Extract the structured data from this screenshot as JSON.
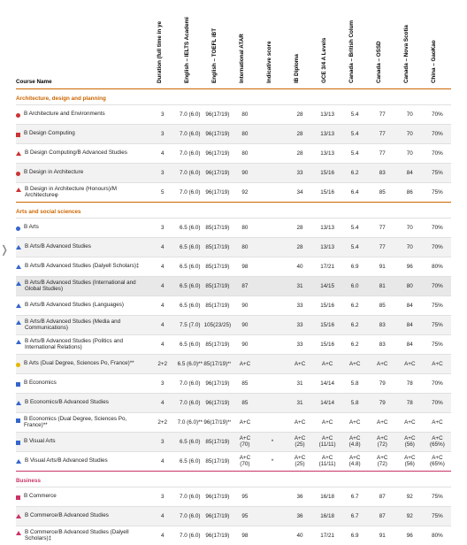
{
  "headers": {
    "course_name": "Course Name",
    "cols": [
      "Duration (full time in ye",
      "English – IELTS Academi",
      "English – TOEFL iBT",
      "International ATAR",
      "Indicative score",
      "IB Diploma",
      "GCE 3/4 A Levels",
      "Canada – British Colum",
      "Canada – OSSD",
      "Canada – Nova Scotia",
      "China – GaoKao"
    ]
  },
  "sections": [
    {
      "title": "Architecture, design and planning",
      "class": "",
      "rows": [
        {
          "shape": "circle",
          "color": "#cc3333",
          "name": "B Architecture and Environments",
          "vals": [
            "3",
            "7.0 (6.0)",
            "96(17/19)",
            "80",
            "",
            "28",
            "13/13",
            "5.4",
            "77",
            "70",
            "70%"
          ]
        },
        {
          "shape": "square",
          "color": "#cc3333",
          "name": "B Design Computing",
          "shade": true,
          "vals": [
            "3",
            "7.0 (6.0)",
            "96(17/19)",
            "80",
            "",
            "28",
            "13/13",
            "5.4",
            "77",
            "70",
            "70%"
          ]
        },
        {
          "shape": "tri",
          "color": "#cc3333",
          "name": "B Design Computing/B Advanced Studies",
          "vals": [
            "4",
            "7.0 (6.0)",
            "96(17/19)",
            "80",
            "",
            "28",
            "13/13",
            "5.4",
            "77",
            "70",
            "70%"
          ]
        },
        {
          "shape": "circle",
          "color": "#cc3333",
          "name": "B Design in Architecture",
          "shade": true,
          "vals": [
            "3",
            "7.0 (6.0)",
            "96(17/19)",
            "90",
            "",
            "33",
            "15/16",
            "6.2",
            "83",
            "84",
            "75%"
          ]
        },
        {
          "shape": "tri",
          "color": "#cc3333",
          "name": "B Design in Architecture (Honours)/M Architectureφ",
          "vals": [
            "5",
            "7.0 (6.0)",
            "96(17/19)",
            "92",
            "",
            "34",
            "15/16",
            "6.4",
            "85",
            "86",
            "75%"
          ]
        }
      ]
    },
    {
      "title": "Arts and social sciences",
      "class": "",
      "rows": [
        {
          "shape": "circle",
          "color": "#3366cc",
          "name": "B Arts",
          "vals": [
            "3",
            "6.5 (6.0)",
            "85(17/19)",
            "80",
            "",
            "28",
            "13/13",
            "5.4",
            "77",
            "70",
            "70%"
          ]
        },
        {
          "shape": "tri",
          "color": "#3366cc",
          "name": "B Arts/B Advanced Studies",
          "shade": true,
          "vals": [
            "4",
            "6.5 (6.0)",
            "85(17/19)",
            "80",
            "",
            "28",
            "13/13",
            "5.4",
            "77",
            "70",
            "70%"
          ]
        },
        {
          "shape": "tri",
          "color": "#3366cc",
          "name": "B Arts/B Advanced Studies (Dalyell Scholars)‡",
          "vals": [
            "4",
            "6.5 (6.0)",
            "85(17/19)",
            "98",
            "",
            "40",
            "17/21",
            "6.9",
            "91",
            "96",
            "80%"
          ]
        },
        {
          "shape": "tri",
          "color": "#3366cc",
          "name": "B Arts/B Advanced Studies (International and Global Studies)",
          "sel": true,
          "vals": [
            "4",
            "6.5 (6.0)",
            "85(17/19)",
            "87",
            "",
            "31",
            "14/15",
            "6.0",
            "81",
            "80",
            "70%"
          ]
        },
        {
          "shape": "tri",
          "color": "#3366cc",
          "name": "B Arts/B Advanced Studies (Languages)",
          "vals": [
            "4",
            "6.5 (6.0)",
            "85(17/19)",
            "90",
            "",
            "33",
            "15/16",
            "6.2",
            "85",
            "84",
            "75%"
          ]
        },
        {
          "shape": "tri",
          "color": "#3366cc",
          "name": "B Arts/B Advanced Studies (Media and Communications)",
          "shade": true,
          "vals": [
            "4",
            "7.5 (7.0)",
            "105(23/25)",
            "90",
            "",
            "33",
            "15/16",
            "6.2",
            "83",
            "84",
            "75%"
          ]
        },
        {
          "shape": "tri",
          "color": "#3366cc",
          "name": "B Arts/B Advanced Studies (Politics and International Relations)",
          "vals": [
            "4",
            "6.5 (6.0)",
            "85(17/19)",
            "90",
            "",
            "33",
            "15/16",
            "6.2",
            "83",
            "84",
            "75%"
          ]
        },
        {
          "shape": "circle",
          "color": "#e6b800",
          "name": "B Arts (Dual Degree, Sciences Po, France)**",
          "shade": true,
          "vals": [
            "2+2",
            "6.5 (6.0)**",
            "85(17/19)**",
            "A+C",
            "",
            "A+C",
            "A+C",
            "A+C",
            "A+C",
            "A+C",
            "A+C"
          ]
        },
        {
          "shape": "square",
          "color": "#3366cc",
          "name": "B Economics",
          "vals": [
            "3",
            "7.0 (6.0)",
            "96(17/19)",
            "85",
            "",
            "31",
            "14/14",
            "5.8",
            "79",
            "78",
            "70%"
          ]
        },
        {
          "shape": "tri",
          "color": "#3366cc",
          "name": "B Economics/B Advanced Studies",
          "shade": true,
          "vals": [
            "4",
            "7.0 (6.0)",
            "96(17/19)",
            "85",
            "",
            "31",
            "14/14",
            "5.8",
            "79",
            "78",
            "70%"
          ]
        },
        {
          "shape": "square",
          "color": "#3366cc",
          "name": "B Economics (Dual Degree, Sciences Po, France)**",
          "vals": [
            "2+2",
            "7.0 (6.0)**",
            "96(17/19)**",
            "A+C",
            "",
            "A+C",
            "A+C",
            "A+C",
            "A+C",
            "A+C",
            "A+C"
          ]
        },
        {
          "shape": "square",
          "color": "#3366cc",
          "name": "B Visual Arts",
          "shade": true,
          "vals": [
            "3",
            "6.5 (6.0)",
            "85(17/19)",
            "A+C\n(70)",
            "*",
            "A+C\n(25)",
            "A+C\n(11/11)",
            "A+C\n(4.8)",
            "A+C\n(72)",
            "A+C\n(56)",
            "A+C\n(65%)"
          ]
        },
        {
          "shape": "tri",
          "color": "#3366cc",
          "name": "B Visual Arts/B Advanced Studies",
          "vals": [
            "4",
            "6.5 (6.0)",
            "85(17/19)",
            "A+C\n(70)",
            "*",
            "A+C\n(25)",
            "A+C\n(11/11)",
            "A+C\n(4.8)",
            "A+C\n(72)",
            "A+C\n(56)",
            "A+C\n(65%)"
          ]
        }
      ]
    },
    {
      "title": "Business",
      "class": "biz",
      "rows": [
        {
          "shape": "square",
          "color": "#cc3366",
          "name": "B Commerce",
          "vals": [
            "3",
            "7.0 (6.0)",
            "96(17/19)",
            "95",
            "",
            "36",
            "16/18",
            "6.7",
            "87",
            "92",
            "75%"
          ]
        },
        {
          "shape": "tri",
          "color": "#cc3366",
          "name": "B Commerce/B Advanced Studies",
          "shade": true,
          "vals": [
            "4",
            "7.0 (6.0)",
            "96(17/19)",
            "95",
            "",
            "36",
            "16/18",
            "6.7",
            "87",
            "92",
            "75%"
          ]
        },
        {
          "shape": "tri",
          "color": "#cc3366",
          "name": "B Commerce/B Advanced Studies (Dalyell Scholars)‡",
          "vals": [
            "4",
            "7.0 (6.0)",
            "96(17/19)",
            "98",
            "",
            "40",
            "17/21",
            "6.9",
            "91",
            "96",
            "80%"
          ]
        }
      ]
    }
  ]
}
